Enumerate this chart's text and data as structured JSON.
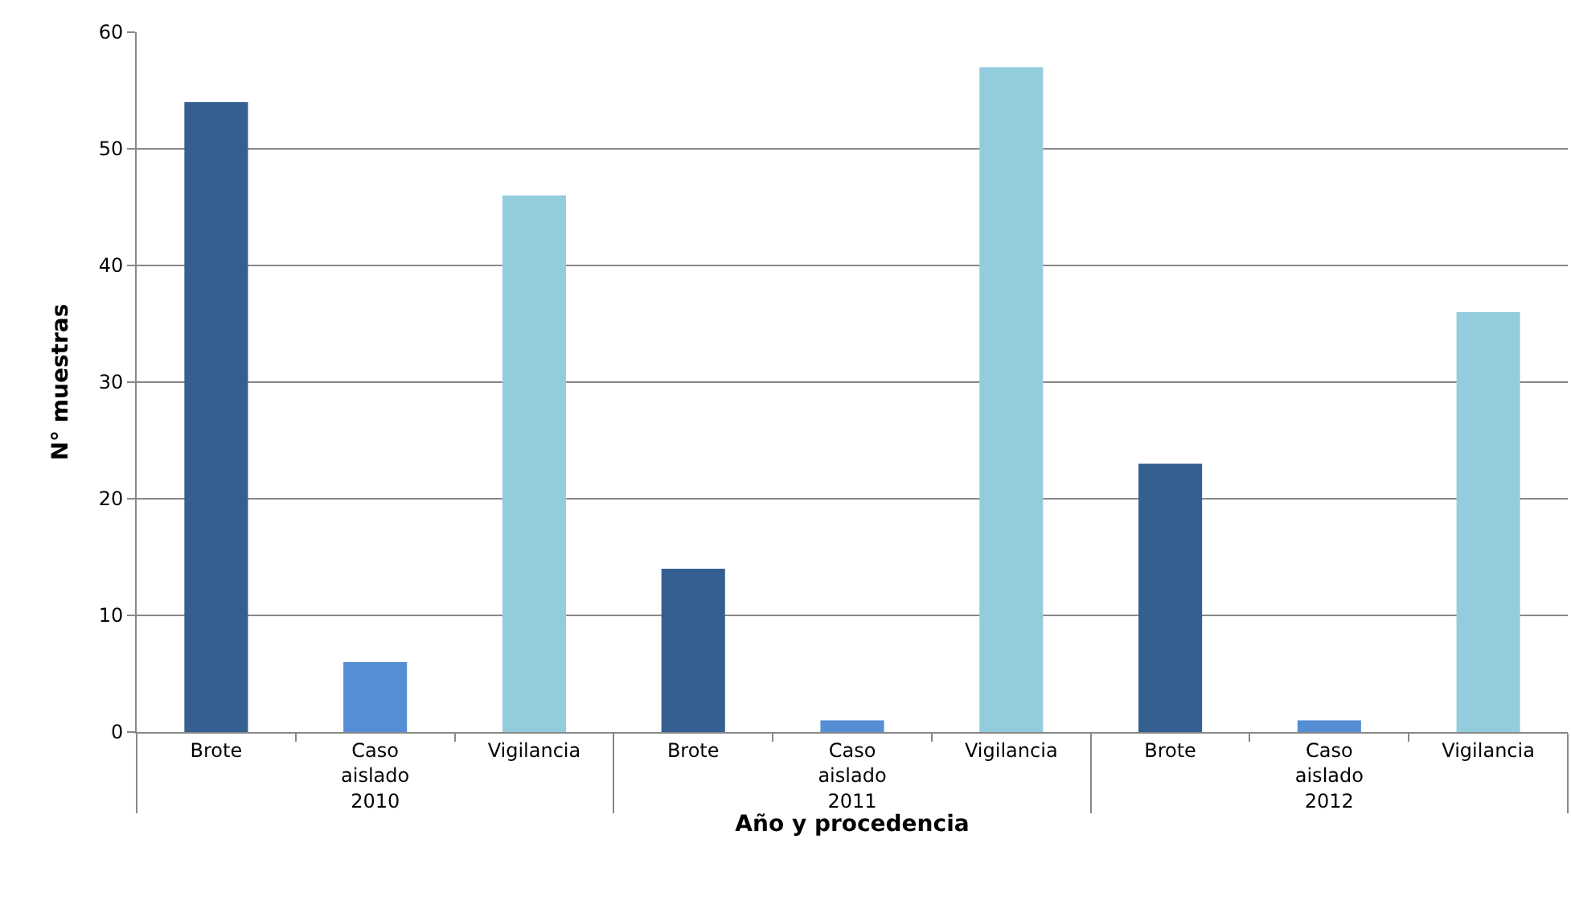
{
  "chart_data": {
    "type": "bar",
    "xlabel": "Año y procedencia",
    "ylabel": "N° muestras",
    "categories": [
      "Brote",
      "Caso aislado",
      "Vigilancia",
      "Brote",
      "Caso aislado",
      "Vigilancia",
      "Brote",
      "Caso aislado",
      "Vigilancia"
    ],
    "values": [
      54,
      6,
      46,
      14,
      1,
      57,
      23,
      1,
      36
    ],
    "colors": [
      "#355f91",
      "#558ed5",
      "#93cddd",
      "#355f91",
      "#558ed5",
      "#93cddd",
      "#355f91",
      "#558ed5",
      "#93cddd"
    ],
    "annotations": [
      "2010",
      "2011",
      "2012"
    ],
    "ylim": [
      0,
      60
    ],
    "yticks": [
      0,
      10,
      20,
      30,
      40,
      50,
      60
    ],
    "grid": "y",
    "legend": false
  }
}
